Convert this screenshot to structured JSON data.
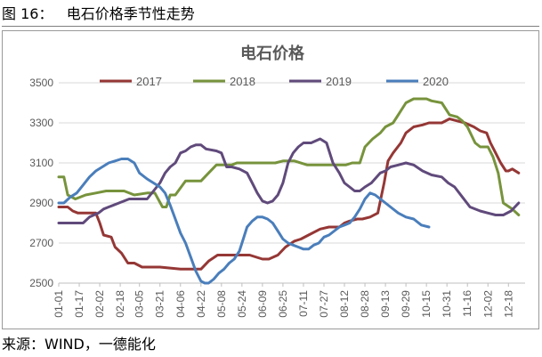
{
  "figure": {
    "caption": "图 16：   电石价格季节性走势",
    "source": "来源：WIND，一德能化"
  },
  "chart_data": {
    "type": "line",
    "title": "电石价格",
    "xlabel": "",
    "ylabel": "",
    "ylim": [
      2500,
      3500
    ],
    "yticks": [
      2500,
      2700,
      2900,
      3100,
      3300,
      3500
    ],
    "grid": true,
    "legend_position": "top",
    "x_tick_labels": [
      "01-01",
      "01-17",
      "02-02",
      "02-18",
      "03-05",
      "03-21",
      "04-06",
      "04-22",
      "05-08",
      "05-24",
      "06-09",
      "06-25",
      "07-11",
      "07-27",
      "08-12",
      "08-28",
      "09-13",
      "09-29",
      "10-15",
      "10-31",
      "11-16",
      "12-02",
      "12-18"
    ],
    "x_tick_days": [
      1,
      17,
      33,
      49,
      64,
      80,
      96,
      112,
      128,
      144,
      160,
      176,
      192,
      208,
      224,
      240,
      256,
      272,
      288,
      304,
      320,
      336,
      352
    ],
    "series": [
      {
        "name": "2017",
        "color": "#953735",
        "x": [
          1,
          8,
          12,
          16,
          20,
          30,
          33,
          36,
          42,
          45,
          50,
          55,
          60,
          66,
          72,
          80,
          96,
          112,
          118,
          125,
          130,
          150,
          160,
          165,
          172,
          178,
          185,
          190,
          196,
          205,
          212,
          220,
          224,
          228,
          234,
          238,
          244,
          250,
          255,
          258,
          262,
          268,
          272,
          278,
          285,
          290,
          295,
          300,
          306,
          312,
          318,
          325,
          330,
          335,
          338,
          342,
          346,
          350,
          352,
          355,
          360
        ],
        "y": [
          2880,
          2880,
          2860,
          2850,
          2850,
          2850,
          2800,
          2740,
          2730,
          2680,
          2650,
          2600,
          2600,
          2580,
          2580,
          2580,
          2570,
          2570,
          2610,
          2640,
          2640,
          2640,
          2620,
          2620,
          2640,
          2680,
          2710,
          2720,
          2740,
          2770,
          2780,
          2780,
          2800,
          2810,
          2820,
          2820,
          2830,
          2850,
          3000,
          3110,
          3150,
          3200,
          3250,
          3280,
          3290,
          3300,
          3300,
          3300,
          3320,
          3310,
          3300,
          3280,
          3260,
          3250,
          3200,
          3150,
          3100,
          3060,
          3060,
          3070,
          3050
        ]
      },
      {
        "name": "2018",
        "color": "#77933C",
        "x": [
          1,
          5,
          8,
          14,
          22,
          30,
          38,
          46,
          52,
          60,
          70,
          76,
          82,
          85,
          88,
          92,
          100,
          112,
          118,
          124,
          130,
          136,
          140,
          150,
          160,
          170,
          176,
          185,
          195,
          205,
          215,
          225,
          230,
          236,
          240,
          246,
          252,
          256,
          262,
          266,
          272,
          278,
          282,
          288,
          292,
          300,
          306,
          312,
          316,
          320,
          326,
          330,
          336,
          340,
          344,
          348,
          355,
          360
        ],
        "y": [
          3030,
          3030,
          2940,
          2920,
          2940,
          2950,
          2960,
          2960,
          2960,
          2940,
          2950,
          2950,
          2880,
          2880,
          2940,
          2940,
          3010,
          3010,
          3050,
          3090,
          3090,
          3090,
          3100,
          3100,
          3100,
          3100,
          3110,
          3110,
          3090,
          3090,
          3090,
          3090,
          3100,
          3100,
          3180,
          3220,
          3250,
          3280,
          3300,
          3340,
          3400,
          3420,
          3420,
          3420,
          3410,
          3400,
          3340,
          3330,
          3310,
          3280,
          3200,
          3180,
          3180,
          3130,
          3050,
          2900,
          2870,
          2840
        ]
      },
      {
        "name": "2019",
        "color": "#604A7B",
        "x": [
          1,
          10,
          20,
          25,
          32,
          36,
          40,
          48,
          56,
          62,
          70,
          75,
          80,
          84,
          88,
          92,
          96,
          100,
          104,
          108,
          112,
          116,
          124,
          128,
          132,
          136,
          142,
          148,
          152,
          156,
          160,
          164,
          168,
          172,
          176,
          180,
          184,
          188,
          192,
          198,
          205,
          210,
          215,
          220,
          224,
          228,
          232,
          236,
          240,
          245,
          252,
          256,
          260,
          266,
          272,
          278,
          285,
          292,
          300,
          305,
          310,
          316,
          322,
          330,
          336,
          342,
          348,
          354,
          360
        ],
        "y": [
          2800,
          2800,
          2800,
          2830,
          2850,
          2870,
          2880,
          2900,
          2920,
          2920,
          2920,
          2960,
          3000,
          3050,
          3080,
          3100,
          3150,
          3160,
          3180,
          3190,
          3190,
          3170,
          3160,
          3150,
          3080,
          3080,
          3070,
          3050,
          3000,
          2950,
          2910,
          2900,
          2910,
          2940,
          3000,
          3100,
          3150,
          3180,
          3200,
          3200,
          3220,
          3200,
          3100,
          3050,
          3000,
          2980,
          2960,
          2960,
          2980,
          3000,
          3050,
          3060,
          3080,
          3090,
          3100,
          3090,
          3060,
          3040,
          3030,
          3000,
          2980,
          2930,
          2880,
          2860,
          2850,
          2840,
          2840,
          2860,
          2900
        ]
      },
      {
        "name": "2020",
        "color": "#4A7EBB",
        "x": [
          1,
          5,
          10,
          15,
          20,
          25,
          30,
          35,
          40,
          45,
          50,
          55,
          60,
          64,
          70,
          75,
          80,
          84,
          88,
          92,
          96,
          100,
          104,
          108,
          112,
          115,
          118,
          122,
          126,
          130,
          134,
          138,
          142,
          144,
          148,
          152,
          156,
          160,
          164,
          168,
          172,
          176,
          180,
          184,
          188,
          192,
          196,
          200,
          204,
          208,
          212,
          216,
          220,
          224,
          228,
          232,
          236,
          240,
          244,
          248,
          252,
          256,
          260,
          266,
          272,
          278,
          284,
          290
        ],
        "y": [
          2900,
          2900,
          2930,
          2950,
          2990,
          3030,
          3060,
          3080,
          3100,
          3110,
          3120,
          3120,
          3100,
          3050,
          3020,
          3000,
          2980,
          2950,
          2890,
          2820,
          2750,
          2700,
          2630,
          2560,
          2510,
          2500,
          2500,
          2520,
          2550,
          2570,
          2600,
          2620,
          2660,
          2700,
          2780,
          2810,
          2830,
          2830,
          2820,
          2800,
          2760,
          2720,
          2700,
          2690,
          2680,
          2670,
          2670,
          2690,
          2700,
          2730,
          2740,
          2760,
          2780,
          2790,
          2800,
          2830,
          2870,
          2920,
          2950,
          2940,
          2920,
          2900,
          2880,
          2850,
          2830,
          2820,
          2790,
          2780
        ]
      }
    ]
  }
}
